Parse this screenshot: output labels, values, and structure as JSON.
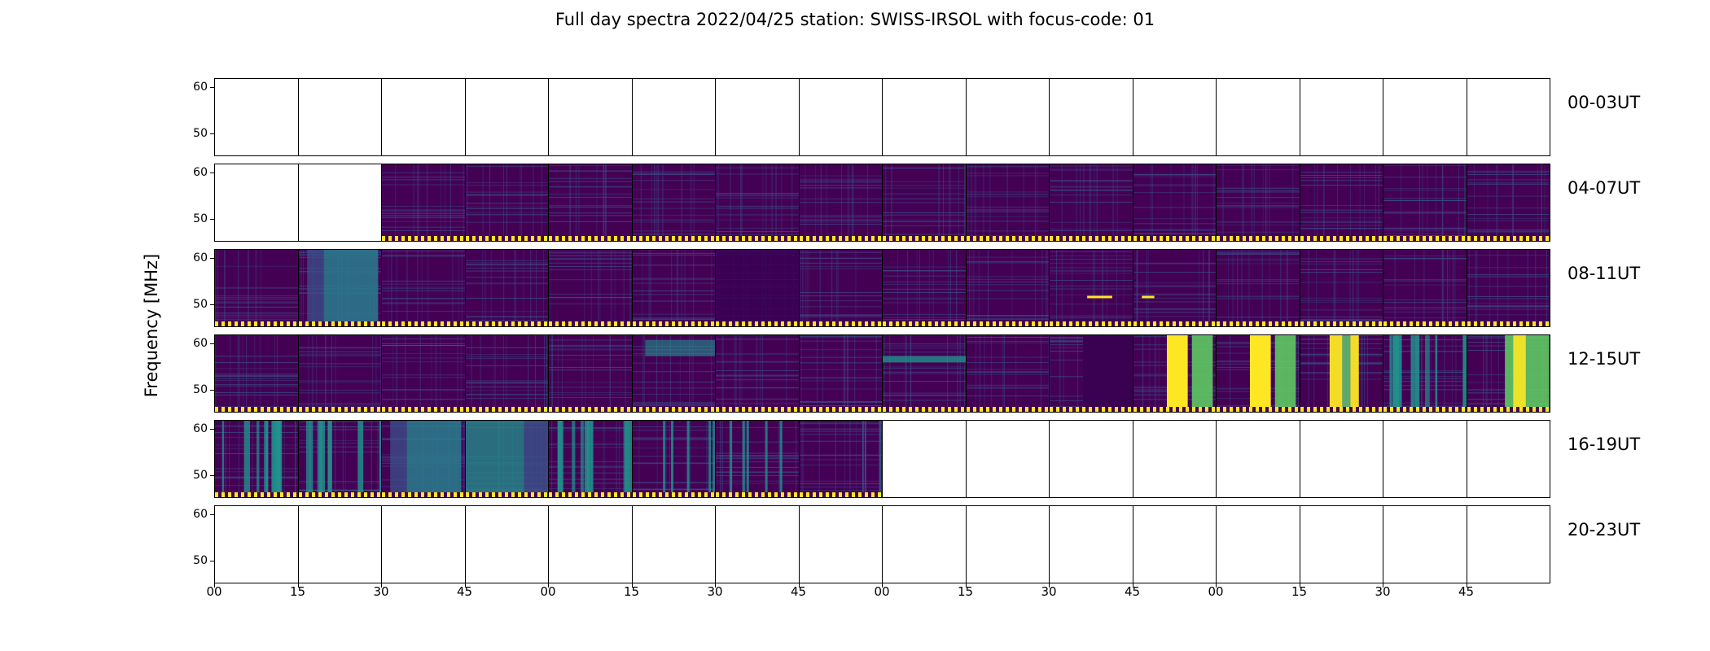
{
  "chart_data": {
    "type": "heatmap",
    "title": "Full day spectra 2022/04/25 station: SWISS-IRSOL with focus-code: 01",
    "ylabel": "Frequency [MHz]",
    "yticks": [
      "60",
      "50"
    ],
    "ylim": [
      45,
      62
    ],
    "xticks": [
      "00",
      "15",
      "30",
      "45",
      "00",
      "15",
      "30",
      "45",
      "00",
      "15",
      "30",
      "45",
      "00",
      "15",
      "30",
      "45"
    ],
    "colormap": [
      "#440154",
      "#3b528b",
      "#21918c",
      "#5ec962",
      "#fde725"
    ],
    "rows": [
      {
        "label": "00-03UT",
        "panels": [
          0,
          0,
          0,
          0,
          0,
          0,
          0,
          0,
          0,
          0,
          0,
          0,
          0,
          0,
          0,
          0
        ]
      },
      {
        "label": "04-07UT",
        "panels": [
          0,
          0,
          1,
          1,
          1,
          1,
          1,
          1,
          1,
          1,
          1,
          1,
          1,
          1,
          1,
          1
        ]
      },
      {
        "label": "08-11UT",
        "panels": [
          1,
          2,
          1,
          1,
          1,
          1,
          3,
          1,
          1,
          1,
          4,
          5,
          1,
          1,
          1,
          1
        ]
      },
      {
        "label": "12-15UT",
        "panels": [
          1,
          1,
          1,
          1,
          1,
          6,
          1,
          1,
          7,
          1,
          8,
          9,
          10,
          11,
          12,
          13
        ]
      },
      {
        "label": "16-19UT",
        "panels": [
          14,
          15,
          2,
          16,
          17,
          18,
          19,
          20,
          0,
          0,
          0,
          0,
          0,
          0,
          0,
          0
        ]
      },
      {
        "label": "20-23UT",
        "panels": [
          0,
          0,
          0,
          0,
          0,
          0,
          0,
          0,
          0,
          0,
          0,
          0,
          0,
          0,
          0,
          0
        ]
      }
    ],
    "panel_types": {
      "0": "empty",
      "1": "background",
      "2": "moderate-emission",
      "3": "dark-low",
      "4": "faint-burst",
      "5": "faint-burst-small",
      "6": "band-emission",
      "7": "drifting-band",
      "8": "dark-block",
      "9": "intense-broadband",
      "10": "intense-broadband",
      "11": "intense-broadband-partial",
      "12": "striped-emission",
      "13": "intense-broadband-late",
      "14": "striped-emission",
      "15": "striped-emission",
      "16": "broadband-teal",
      "17": "striped-emission",
      "18": "striped-sparse",
      "19": "striped-sparse",
      "20": "background-sparse"
    }
  }
}
